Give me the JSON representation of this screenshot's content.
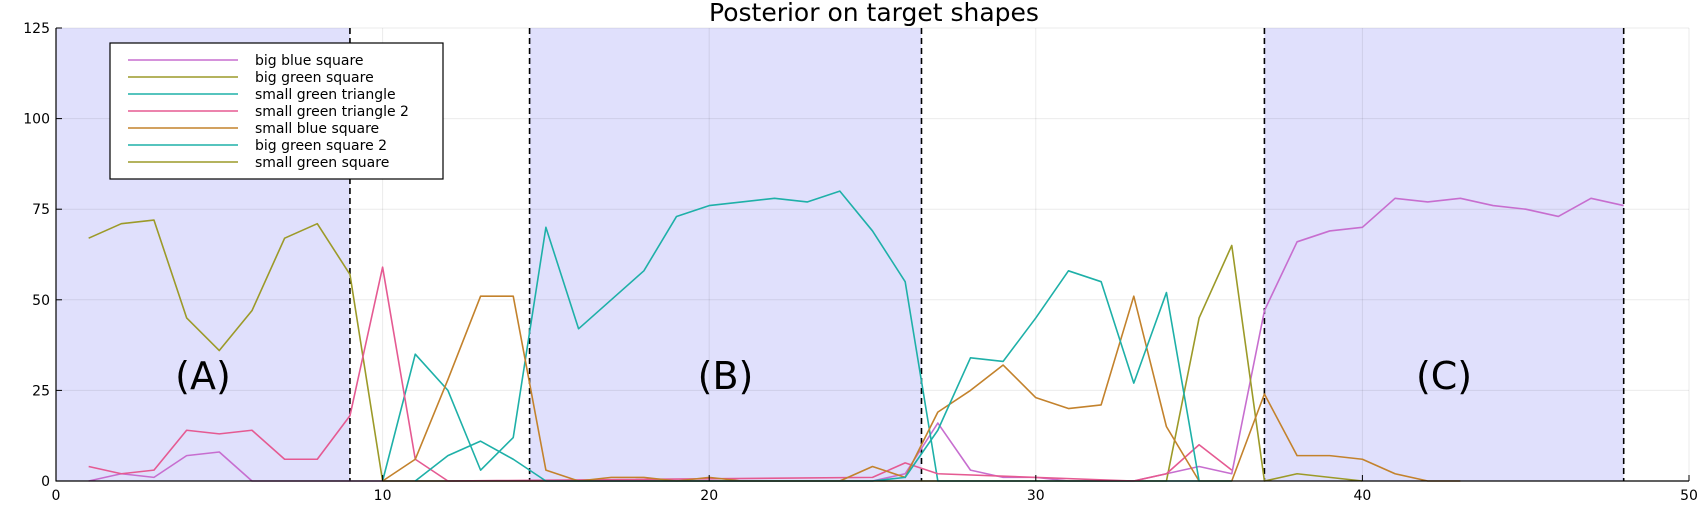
{
  "chart_data": {
    "type": "line",
    "title": "Posterior on target shapes",
    "xlabel": "",
    "ylabel": "",
    "xlim": [
      0,
      50
    ],
    "ylim": [
      0,
      125
    ],
    "xticks": [
      0,
      10,
      20,
      30,
      40,
      50
    ],
    "yticks": [
      0,
      25,
      50,
      75,
      100,
      125
    ],
    "x_tick_labels": [
      "0",
      "10",
      "20",
      "30",
      "40",
      "50"
    ],
    "y_tick_labels": [
      "0",
      "25",
      "50",
      "75",
      "100",
      "125"
    ],
    "grid": true,
    "legend_position": "top-left",
    "region_color": "#e0e0fc",
    "regions": [
      {
        "label": "(A)",
        "x_start": 0,
        "x_end": 9
      },
      {
        "label": "(B)",
        "x_start": 14.5,
        "x_end": 26.5
      },
      {
        "label": "(C)",
        "x_start": 37,
        "x_end": 48
      }
    ],
    "dashed_lines_x": [
      9,
      14.5,
      26.5,
      37,
      48
    ],
    "region_label_y": 29,
    "series": [
      {
        "name": "big blue square",
        "color": "#c76ecf",
        "x": [
          1,
          2,
          3,
          4,
          5,
          6,
          7,
          8,
          9,
          10,
          11,
          12,
          13,
          14,
          15,
          16,
          17,
          18,
          19,
          20,
          21,
          22,
          23,
          24,
          25,
          26,
          27,
          28,
          29,
          30,
          31,
          32,
          33,
          34,
          35,
          36,
          37,
          38,
          39,
          40,
          41,
          42,
          43,
          44,
          45,
          46,
          47,
          48
        ],
        "y": [
          0,
          2,
          1,
          7,
          8,
          0,
          0,
          0,
          0,
          0,
          0,
          0,
          0,
          0,
          0,
          0,
          0,
          0,
          0,
          0,
          0,
          0,
          0,
          0,
          0,
          2,
          16,
          3,
          1,
          1,
          0,
          0,
          0,
          2,
          4,
          2,
          47,
          66,
          69,
          70,
          78,
          77,
          78,
          76,
          75,
          73,
          78,
          76
        ]
      },
      {
        "name": "big green square",
        "color": "#9c9a28",
        "x": [
          1,
          2,
          3,
          4,
          5,
          6,
          7,
          8,
          9,
          10,
          11,
          12,
          13,
          14,
          15,
          16,
          17,
          18,
          19,
          20,
          21,
          22,
          23,
          24,
          25,
          26,
          27,
          28,
          29,
          30,
          31,
          32,
          33,
          34,
          35,
          36,
          37,
          38,
          39,
          40
        ],
        "y": [
          67,
          71,
          72,
          45,
          36,
          47,
          67,
          71,
          57,
          0,
          0,
          0,
          0,
          0,
          0,
          0,
          0,
          0,
          0,
          0,
          0,
          0,
          0,
          0,
          0,
          0,
          0,
          0,
          0,
          0,
          0,
          0,
          0,
          0,
          45,
          65,
          0,
          2,
          1,
          0
        ]
      },
      {
        "name": "small green triangle",
        "color": "#1eb0a8",
        "x": [
          10,
          11,
          12,
          13,
          14,
          15,
          16,
          17,
          18,
          19,
          20,
          21,
          22,
          23,
          24,
          25,
          26,
          27,
          28,
          29,
          30,
          31,
          32,
          33,
          34,
          35
        ],
        "y": [
          0,
          35,
          25,
          3,
          12,
          70,
          42,
          50,
          58,
          73,
          76,
          77,
          78,
          77,
          80,
          69,
          55,
          0,
          0,
          0,
          0,
          0,
          0,
          0,
          0,
          0
        ]
      },
      {
        "name": "small green triangle 2",
        "color": "#e55a92",
        "x": [
          1,
          2,
          3,
          4,
          5,
          6,
          7,
          8,
          9,
          10,
          11,
          12,
          25,
          26,
          27,
          33,
          34,
          35,
          36
        ],
        "y": [
          4,
          2,
          3,
          14,
          13,
          14,
          6,
          6,
          18,
          59,
          6,
          0,
          1,
          5,
          2,
          0,
          2,
          10,
          3
        ]
      },
      {
        "name": "small blue square",
        "color": "#c3822c",
        "x": [
          10,
          11,
          12,
          13,
          14,
          15,
          16,
          17,
          18,
          19,
          20,
          21,
          22,
          23,
          24,
          25,
          26,
          27,
          28,
          29,
          30,
          31,
          32,
          33,
          34,
          35,
          36,
          37,
          38,
          39,
          40,
          41,
          42,
          43
        ],
        "y": [
          0,
          6,
          28,
          51,
          51,
          3,
          0,
          1,
          1,
          0,
          1,
          0,
          0,
          0,
          0,
          4,
          1,
          19,
          25,
          32,
          23,
          20,
          21,
          51,
          15,
          0,
          0,
          24,
          7,
          7,
          6,
          2,
          0,
          0
        ]
      },
      {
        "name": "big green square 2",
        "color": "#1eb0a8",
        "x": [
          11,
          12,
          13,
          14,
          15,
          25,
          26,
          27,
          28,
          29,
          30,
          31,
          32,
          33,
          34,
          35,
          36
        ],
        "y": [
          0,
          7,
          11,
          6,
          0,
          0,
          1,
          14,
          34,
          33,
          45,
          58,
          55,
          27,
          52,
          0,
          0
        ]
      },
      {
        "name": "small green square",
        "color": "#9c9a28",
        "x": [],
        "y": []
      }
    ]
  }
}
